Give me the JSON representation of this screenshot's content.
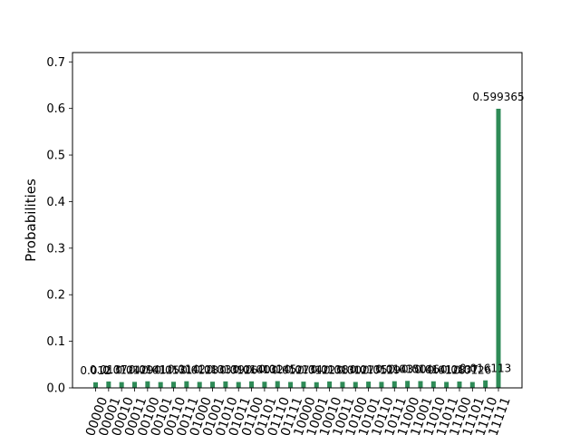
{
  "chart_data": {
    "type": "bar",
    "title": "",
    "xlabel": "",
    "ylabel": "Probabilities",
    "ylim": [
      0,
      0.72
    ],
    "yticks": [
      "0.0",
      "0.1",
      "0.2",
      "0.3",
      "0.4",
      "0.5",
      "0.6",
      "0.7"
    ],
    "ytick_values": [
      0,
      0.1,
      0.2,
      0.3,
      0.4,
      0.5,
      0.6,
      0.7
    ],
    "bar_color": "#2e8b57",
    "grid": false,
    "categories": [
      "00000",
      "00001",
      "00010",
      "00011",
      "00100",
      "00101",
      "00110",
      "00111",
      "01000",
      "01001",
      "01010",
      "01011",
      "01100",
      "01101",
      "01110",
      "01111",
      "10000",
      "10001",
      "10010",
      "10011",
      "10100",
      "10101",
      "10110",
      "10111",
      "11000",
      "11001",
      "11010",
      "11011",
      "11100",
      "11101",
      "11110",
      "11111"
    ],
    "values": [
      0.012,
      0.0137,
      0.0124,
      0.0129,
      0.0141,
      0.0125,
      0.0131,
      0.0142,
      0.0128,
      0.0133,
      0.0139,
      0.0126,
      0.014,
      0.0132,
      0.0145,
      0.0127,
      0.0134,
      0.0122,
      0.0138,
      0.013,
      0.0127,
      0.0135,
      0.0129,
      0.0143,
      0.015,
      0.0146,
      0.0141,
      0.0128,
      0.0137,
      0.0126,
      0.016113,
      0.599365
    ],
    "value_labels": [
      "0.012",
      "0.0137",
      "0.0124",
      "0.0129",
      "0.0141",
      "0.0125",
      "0.0131",
      "0.0142",
      "0.0128",
      "0.0133",
      "0.0139",
      "0.0126",
      "0.0140",
      "0.0132",
      "0.0145",
      "0.0127",
      "0.0134",
      "0.0122",
      "0.0138",
      "0.0130",
      "0.0127",
      "0.0135",
      "0.0129",
      "0.0143",
      "0.0150",
      "0.0146",
      "0.0141",
      "0.0128",
      "0.0137",
      "0.0126",
      "0.016113",
      "0.599365"
    ]
  }
}
